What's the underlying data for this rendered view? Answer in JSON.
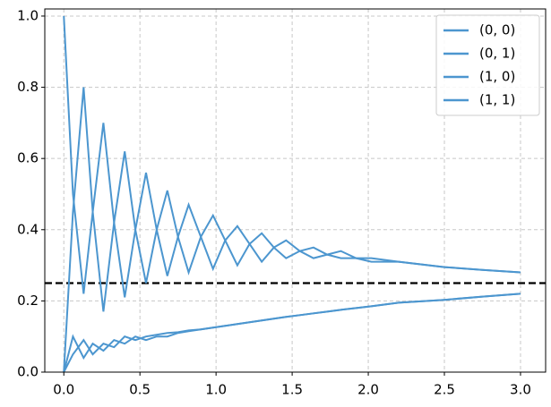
{
  "chart_data": {
    "type": "line",
    "x": [
      0,
      0.06,
      0.13,
      0.19,
      0.26,
      0.33,
      0.4,
      0.47,
      0.54,
      0.61,
      0.68,
      0.75,
      0.82,
      0.9,
      0.98,
      1.06,
      1.14,
      1.22,
      1.3,
      1.38,
      1.46,
      1.55,
      1.64,
      1.73,
      1.82,
      1.92,
      2.02,
      2.2,
      2.5,
      2.75,
      3.0
    ],
    "series": [
      {
        "name": "(0, 0)",
        "color": "#4c96cf",
        "values": [
          1.0,
          0.5,
          0.22,
          0.45,
          0.7,
          0.42,
          0.21,
          0.4,
          0.56,
          0.4,
          0.27,
          0.38,
          0.47,
          0.38,
          0.29,
          0.37,
          0.41,
          0.36,
          0.31,
          0.35,
          0.37,
          0.34,
          0.32,
          0.33,
          0.34,
          0.32,
          0.31,
          0.31,
          0.295,
          0.287,
          0.28
        ]
      },
      {
        "name": "(0, 1)",
        "color": "#4c96cf",
        "values": [
          0,
          0.1,
          0.04,
          0.08,
          0.06,
          0.09,
          0.08,
          0.1,
          0.09,
          0.1,
          0.1,
          0.11,
          0.115,
          0.12,
          0.125,
          0.13,
          0.135,
          0.14,
          0.145,
          0.15,
          0.155,
          0.16,
          0.165,
          0.17,
          0.175,
          0.18,
          0.185,
          0.195,
          0.203,
          0.212,
          0.22
        ]
      },
      {
        "name": "(1, 0)",
        "color": "#4c96cf",
        "values": [
          0,
          0.05,
          0.09,
          0.05,
          0.08,
          0.07,
          0.1,
          0.09,
          0.1,
          0.105,
          0.11,
          0.112,
          0.117,
          0.12,
          0.125,
          0.13,
          0.135,
          0.14,
          0.145,
          0.15,
          0.155,
          0.16,
          0.165,
          0.17,
          0.175,
          0.18,
          0.185,
          0.195,
          0.203,
          0.212,
          0.22
        ]
      },
      {
        "name": "(1, 1)",
        "color": "#4c96cf",
        "values": [
          0.0,
          0.45,
          0.8,
          0.45,
          0.17,
          0.42,
          0.62,
          0.4,
          0.25,
          0.4,
          0.51,
          0.38,
          0.28,
          0.38,
          0.44,
          0.37,
          0.3,
          0.36,
          0.39,
          0.35,
          0.32,
          0.34,
          0.35,
          0.33,
          0.32,
          0.32,
          0.32,
          0.31,
          0.295,
          0.287,
          0.28
        ]
      }
    ],
    "xlim": [
      -0.125,
      3.165
    ],
    "ylim": [
      0,
      1.02
    ],
    "xticks": [
      {
        "value": 0,
        "label": "0.0"
      },
      0.5,
      {
        "value": 1,
        "label": "1.0"
      },
      1.5,
      {
        "value": 2,
        "label": "2.0"
      },
      2.5,
      {
        "value": 3,
        "label": "3.0"
      }
    ],
    "yticks": [
      {
        "value": 0,
        "label": "0.0"
      },
      0.2,
      0.4,
      0.6,
      0.8,
      {
        "value": 1,
        "label": "1.0"
      }
    ],
    "grid": true,
    "legend": "upper-right",
    "reference_line": {
      "value": 0.25,
      "color": "#000000",
      "style": "dashed"
    }
  }
}
